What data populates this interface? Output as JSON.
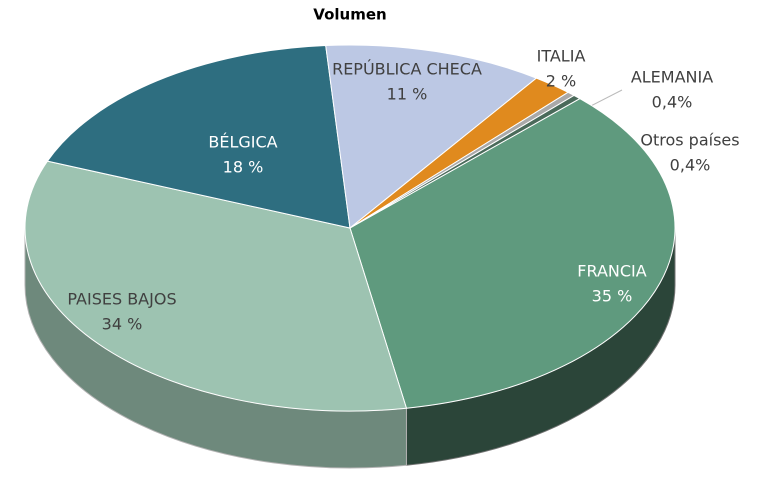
{
  "chart_data": {
    "type": "pie",
    "title": "Volumen",
    "categories": [
      "FRANCIA",
      "PAISES BAJOS",
      "BÉLGICA",
      "REPÚBLICA CHECA",
      "ITALIA",
      "ALEMANIA",
      "Otros países"
    ],
    "values": [
      35,
      34,
      18,
      11,
      2,
      0.4,
      0.4
    ],
    "value_labels": [
      "35 %",
      "34 %",
      "18 %",
      "11 %",
      "2 %",
      "0,4%",
      "0,4%"
    ],
    "colors": [
      "#5f9a7e",
      "#9dc3b1",
      "#2e6e80",
      "#bcc8e4",
      "#e08a1e",
      "#a9a9a9",
      "#4a6a5a"
    ]
  }
}
